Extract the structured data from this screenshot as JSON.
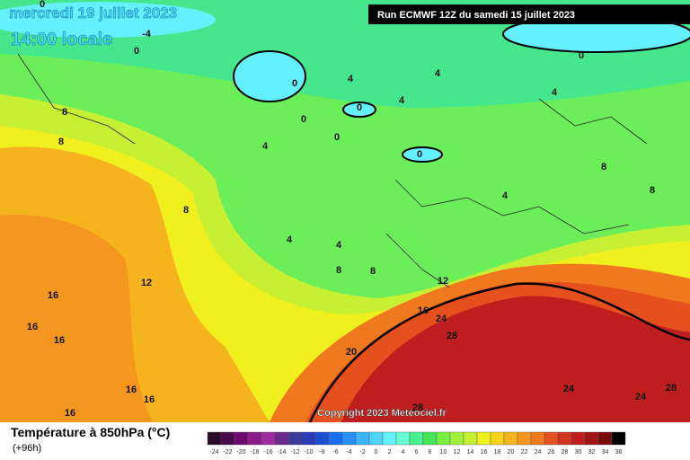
{
  "header": {
    "title": "mercredi 19 juillet 2023",
    "subtitle": "14:00 locale",
    "run": "Run ECMWF 12Z du samedi 15 juillet 2023"
  },
  "contour_labels": [
    0,
    -4,
    0,
    0,
    0,
    0,
    0,
    0,
    0,
    4,
    4,
    4,
    4,
    4,
    4,
    4,
    4,
    8,
    8,
    8,
    8,
    8,
    8,
    8,
    12,
    12,
    16,
    16,
    16,
    16,
    16,
    16,
    16,
    20,
    24,
    24,
    24,
    28,
    28,
    28
  ],
  "copyright": "Copyright 2023 Meteociel.fr",
  "legend": {
    "title": "Température à 850hPa (°C)",
    "lead": "(+96h)",
    "ticks": [
      -24,
      -22,
      -20,
      -18,
      -16,
      -14,
      -12,
      -10,
      -8,
      -6,
      -4,
      -2,
      0,
      2,
      4,
      6,
      8,
      10,
      12,
      14,
      16,
      18,
      20,
      22,
      24,
      26,
      28,
      30,
      32,
      34,
      36
    ],
    "colors": [
      "#2c0a2c",
      "#4a0a4a",
      "#6e0a6e",
      "#8c1a8c",
      "#a02aa0",
      "#6a2a8a",
      "#3c3c9a",
      "#2a3cb4",
      "#1e50d2",
      "#1e6ef0",
      "#2890fa",
      "#3cb4ff",
      "#50d2ff",
      "#64f0ff",
      "#64ffd2",
      "#46f08c",
      "#46e65a",
      "#78f046",
      "#a0f03c",
      "#c8f032",
      "#f0f01e",
      "#f5d21e",
      "#f5b41e",
      "#f5961e",
      "#f0781e",
      "#e6501e",
      "#d2321e",
      "#be1e1e",
      "#a01414",
      "#780a0a",
      "#000000"
    ]
  }
}
